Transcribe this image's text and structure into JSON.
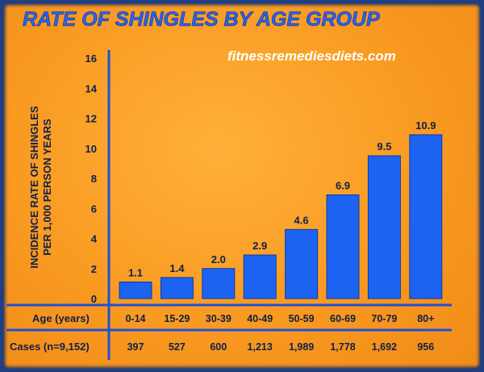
{
  "chart_data": {
    "type": "bar",
    "title": "RATE OF SHINGLES BY AGE GROUP",
    "watermark": "fitnessremediesdiets.com",
    "ylabel_line1": "INCIDENCE RATE OF SHINGLES",
    "ylabel_line2": "PER 1,000 PERSON YEARS",
    "ylim": [
      0,
      16
    ],
    "yticks": [
      "0",
      "2",
      "4",
      "6",
      "8",
      "10",
      "12",
      "14",
      "16"
    ],
    "x_row_label": "Age (years)",
    "categories": [
      "0-14",
      "15-29",
      "30-39",
      "40-49",
      "50-59",
      "60-69",
      "70-79",
      "80+"
    ],
    "values": [
      1.1,
      1.4,
      2.0,
      2.9,
      4.6,
      6.9,
      9.5,
      10.9
    ],
    "value_labels": [
      "1.1",
      "1.4",
      "2.0",
      "2.9",
      "4.6",
      "6.9",
      "9.5",
      "10.9"
    ],
    "cases_row_label": "Cases (n=9,152)",
    "cases": [
      "397",
      "527",
      "600",
      "1,213",
      "1,989",
      "1,778",
      "1,692",
      "956"
    ],
    "colors": {
      "bar": "#1d63f2",
      "background": "#f99a21",
      "axis": "#1f4fd8",
      "title": "#2a63f0"
    },
    "grid": false
  }
}
